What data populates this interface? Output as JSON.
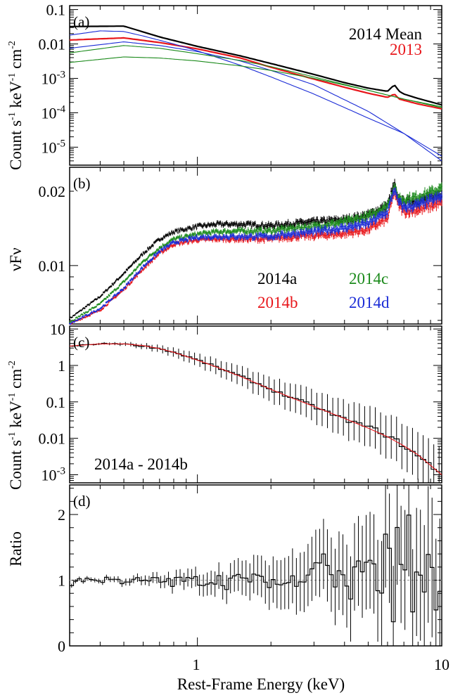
{
  "figure": {
    "xlabel": "Rest-Frame Energy (keV)",
    "x_ticks": [
      {
        "value": 1,
        "label": "1"
      },
      {
        "value": 10,
        "label": "10"
      }
    ]
  },
  "chart_data": [
    {
      "type": "line",
      "panel_label": "(a)",
      "ylabel": "Count s-1 keV-1 cm-2",
      "ylabel_parts": {
        "base": "Count s",
        "e1": "-1",
        "mid": " keV",
        "e2": "-1",
        "end": " cm",
        "e3": "-2"
      },
      "xscale": "log",
      "yscale": "log",
      "xlim": [
        0.3,
        10
      ],
      "ylim": [
        3e-06,
        0.13
      ],
      "y_ticks": [
        {
          "value": 0.1,
          "label": "0.1"
        },
        {
          "value": 0.01,
          "label": "0.01"
        },
        {
          "value": 0.001,
          "base": "10",
          "exp": "-3"
        },
        {
          "value": 0.0001,
          "base": "10",
          "exp": "-4"
        },
        {
          "value": 1e-05,
          "base": "10",
          "exp": "-5"
        }
      ],
      "legend": [
        {
          "label": "2014 Mean",
          "color": "#000000"
        },
        {
          "label": "2013",
          "color": "#e8161b"
        }
      ],
      "series": [
        {
          "name": "2014 Mean",
          "color": "#000000",
          "x": [
            0.3,
            0.5,
            0.7,
            1.0,
            1.5,
            2.0,
            3.0,
            4.0,
            5.0,
            6.0,
            6.4,
            6.7,
            7.0,
            8.0,
            10.0
          ],
          "y": [
            0.032,
            0.033,
            0.016,
            0.0085,
            0.0045,
            0.0027,
            0.0013,
            0.00075,
            0.00052,
            0.00042,
            0.00065,
            0.00042,
            0.00035,
            0.00026,
            0.00017
          ]
        },
        {
          "name": "2013",
          "color": "#e8161b",
          "x": [
            0.3,
            0.5,
            0.7,
            1.0,
            1.5,
            2.0,
            3.0,
            4.0,
            5.0,
            6.0,
            6.4,
            6.7,
            7.0,
            8.0,
            10.0
          ],
          "y": [
            0.013,
            0.015,
            0.011,
            0.0072,
            0.0039,
            0.0021,
            0.00095,
            0.00055,
            0.00037,
            0.00028,
            0.00035,
            0.00025,
            0.00023,
            0.00018,
            0.00013
          ]
        },
        {
          "color": "#1a2bd6",
          "x": [
            0.3,
            0.4,
            0.5,
            0.6,
            0.8,
            1.0,
            1.5,
            2.0,
            3.0,
            5.0,
            7.0,
            10.0
          ],
          "y": [
            0.018,
            0.024,
            0.023,
            0.017,
            0.01,
            0.0063,
            0.0024,
            0.0011,
            0.00035,
            7e-05,
            2.5e-05,
            5.5e-06
          ]
        },
        {
          "color": "#1a2bd6",
          "x": [
            0.3,
            0.5,
            0.7,
            1.0,
            1.5,
            2.0,
            3.0,
            5.0,
            7.0,
            10.0
          ],
          "y": [
            0.0075,
            0.0115,
            0.009,
            0.006,
            0.0032,
            0.0017,
            0.00065,
            0.00011,
            2.5e-05,
            4e-06
          ]
        },
        {
          "color": "#1b8a1b",
          "x": [
            0.3,
            0.5,
            0.7,
            1.0,
            1.5,
            2.0,
            3.0,
            5.0,
            7.0,
            10.0
          ],
          "y": [
            0.0055,
            0.009,
            0.0075,
            0.0052,
            0.0033,
            0.0022,
            0.0011,
            0.00045,
            0.00025,
            0.00015
          ]
        },
        {
          "color": "#1b8a1b",
          "x": [
            0.3,
            0.5,
            0.7,
            1.0,
            1.5,
            2.0,
            3.0,
            5.0,
            7.0,
            10.0
          ],
          "y": [
            0.0029,
            0.0042,
            0.0039,
            0.0032,
            0.0023,
            0.0017,
            0.001,
            0.00045,
            0.00025,
            0.00014
          ]
        }
      ]
    },
    {
      "type": "scatter",
      "panel_label": "(b)",
      "ylabel": "νFν",
      "xscale": "log",
      "yscale": "log",
      "xlim": [
        0.3,
        10
      ],
      "ylim": [
        0.0058,
        0.025
      ],
      "y_ticks": [
        {
          "value": 0.01,
          "label": "0.01"
        },
        {
          "value": 0.02,
          "label": "0.02"
        }
      ],
      "legend": [
        {
          "label": "2014a",
          "color": "#000000"
        },
        {
          "label": "2014c",
          "color": "#1b8a1b"
        },
        {
          "label": "2014b",
          "color": "#e8161b"
        },
        {
          "label": "2014d",
          "color": "#1a2bd6"
        }
      ],
      "series": [
        {
          "name": "2014a",
          "color": "#000000",
          "x": [
            0.3,
            0.4,
            0.5,
            0.6,
            0.7,
            0.8,
            1.0,
            1.2,
            1.5,
            2.0,
            2.5,
            3.0,
            4.0,
            5.0,
            6.0,
            6.4,
            6.6,
            7.0,
            8.0,
            10.0
          ],
          "y": [
            0.0061,
            0.0075,
            0.0093,
            0.0112,
            0.0128,
            0.0137,
            0.0144,
            0.0147,
            0.0147,
            0.0145,
            0.0148,
            0.015,
            0.0153,
            0.016,
            0.0175,
            0.0215,
            0.0185,
            0.018,
            0.0182,
            0.0195
          ]
        },
        {
          "name": "2014c",
          "color": "#1b8a1b",
          "x": [
            0.3,
            0.4,
            0.5,
            0.6,
            0.7,
            0.8,
            1.0,
            1.2,
            1.5,
            2.0,
            2.5,
            3.0,
            4.0,
            5.0,
            6.0,
            6.4,
            6.6,
            7.0,
            8.0,
            10.0
          ],
          "y": [
            0.0059,
            0.007,
            0.0086,
            0.0104,
            0.0118,
            0.0128,
            0.0134,
            0.0137,
            0.0138,
            0.0138,
            0.0142,
            0.0144,
            0.015,
            0.0158,
            0.0175,
            0.021,
            0.019,
            0.0185,
            0.019,
            0.0205
          ]
        },
        {
          "name": "2014b",
          "color": "#e8161b",
          "x": [
            0.3,
            0.4,
            0.5,
            0.6,
            0.7,
            0.8,
            1.0,
            1.2,
            1.5,
            2.0,
            2.5,
            3.0,
            4.0,
            5.0,
            6.0,
            6.4,
            6.6,
            7.0,
            8.0,
            10.0
          ],
          "y": [
            0.0058,
            0.0066,
            0.008,
            0.0097,
            0.0112,
            0.0122,
            0.0127,
            0.0128,
            0.0128,
            0.0128,
            0.0131,
            0.0132,
            0.0135,
            0.014,
            0.0155,
            0.02,
            0.0178,
            0.0165,
            0.0168,
            0.018
          ]
        },
        {
          "name": "2014d",
          "color": "#1a2bd6",
          "x": [
            0.3,
            0.4,
            0.5,
            0.6,
            0.7,
            0.8,
            1.0,
            1.2,
            1.5,
            2.0,
            2.5,
            3.0,
            4.0,
            5.0,
            6.0,
            6.4,
            6.6,
            7.0,
            8.0,
            10.0
          ],
          "y": [
            0.0058,
            0.0067,
            0.0081,
            0.0099,
            0.0114,
            0.0124,
            0.013,
            0.0131,
            0.0131,
            0.0131,
            0.0135,
            0.0137,
            0.0142,
            0.0148,
            0.0165,
            0.0205,
            0.0182,
            0.0172,
            0.0176,
            0.019
          ]
        }
      ]
    },
    {
      "type": "line",
      "panel_label": "(c)",
      "ylabel": "Count s-1 keV-1 cm-2",
      "ylabel_parts": {
        "base": "Count s",
        "e1": "-1",
        "mid": " keV",
        "e2": "-1",
        "end": " cm",
        "e3": "-2"
      },
      "annotation": "2014a - 2014b",
      "xscale": "log",
      "yscale": "log",
      "xlim": [
        0.3,
        10
      ],
      "ylim": [
        0.0006,
        12
      ],
      "y_ticks": [
        {
          "value": 10,
          "label": "10"
        },
        {
          "value": 1,
          "label": "1"
        },
        {
          "value": 0.1,
          "label": "0.1"
        },
        {
          "value": 0.01,
          "label": "0.01"
        },
        {
          "value": 0.001,
          "base": "10",
          "exp": "-3"
        }
      ],
      "series": [
        {
          "color": "#000000",
          "style": "step",
          "x": [
            0.3,
            0.35,
            0.4,
            0.45,
            0.5,
            0.6,
            0.7,
            0.8,
            0.9,
            1.0,
            1.2,
            1.4,
            1.6,
            1.8,
            2.0,
            2.3,
            2.6,
            3.0,
            3.4,
            3.8,
            4.2,
            4.6,
            5.0,
            5.5,
            6.0,
            6.5,
            7.0,
            7.5,
            8.0,
            9.0,
            10.0
          ],
          "y": [
            3.3,
            3.7,
            3.9,
            4.0,
            3.9,
            3.4,
            2.9,
            2.3,
            1.8,
            1.4,
            0.9,
            0.6,
            0.42,
            0.3,
            0.22,
            0.15,
            0.11,
            0.075,
            0.052,
            0.038,
            0.03,
            0.025,
            0.02,
            0.017,
            0.011,
            0.009,
            0.006,
            0.0045,
            0.0032,
            0.0018,
            0.0011
          ]
        },
        {
          "color": "#e8161b",
          "style": "line",
          "x": [
            0.3,
            0.4,
            0.5,
            0.6,
            0.7,
            0.8,
            1.0,
            1.2,
            1.5,
            2.0,
            2.5,
            3.0,
            4.0,
            5.0,
            6.0,
            7.0,
            8.0,
            9.0,
            10.0
          ],
          "y": [
            3.4,
            3.9,
            3.9,
            3.5,
            2.9,
            2.3,
            1.4,
            0.9,
            0.5,
            0.22,
            0.12,
            0.075,
            0.035,
            0.019,
            0.011,
            0.0062,
            0.0035,
            0.0018,
            0.001
          ]
        }
      ]
    },
    {
      "type": "line",
      "panel_label": "(d)",
      "ylabel": "Ratio",
      "xscale": "log",
      "yscale": "linear",
      "xlim": [
        0.3,
        10
      ],
      "ylim": [
        0,
        2.45
      ],
      "y_ticks": [
        {
          "value": 0,
          "label": "0"
        },
        {
          "value": 1,
          "label": "1"
        },
        {
          "value": 2,
          "label": "2"
        }
      ],
      "reference_line": 1,
      "series": [
        {
          "color": "#000000",
          "style": "step",
          "x": [
            0.3,
            0.32,
            0.34,
            0.36,
            0.38,
            0.4,
            0.43,
            0.46,
            0.5,
            0.55,
            0.6,
            0.65,
            0.7,
            0.75,
            0.8,
            0.85,
            0.9,
            1.0,
            1.1,
            1.2,
            1.3,
            1.4,
            1.5,
            1.6,
            1.7,
            1.8,
            2.0,
            2.2,
            2.4,
            2.6,
            2.8,
            3.0,
            3.2,
            3.4,
            3.6,
            3.8,
            4.0,
            4.2,
            4.5,
            4.8,
            5.0,
            5.3,
            5.6,
            6.0,
            6.3,
            6.6,
            7.0,
            7.3,
            7.6,
            8.0,
            8.5,
            9.0,
            9.5,
            10.0
          ],
          "y": [
            0.88,
            1.02,
            0.98,
            1.05,
            1.0,
            0.97,
            1.04,
            1.0,
            0.98,
            1.02,
            0.96,
            1.01,
            0.98,
            1.0,
            0.95,
            1.03,
            0.99,
            1.0,
            0.97,
            1.04,
            0.93,
            1.05,
            0.98,
            1.0,
            1.08,
            0.95,
            1.0,
            0.93,
            0.98,
            1.05,
            1.1,
            1.25,
            1.35,
            1.3,
            0.85,
            1.2,
            1.05,
            0.7,
            1.3,
            0.95,
            1.6,
            1.1,
            0.5,
            2.2,
            0.3,
            1.8,
            0.8,
            2.3,
            0.4,
            1.2,
            0.9,
            1.5,
            0.3,
            1.1
          ]
        }
      ]
    }
  ]
}
